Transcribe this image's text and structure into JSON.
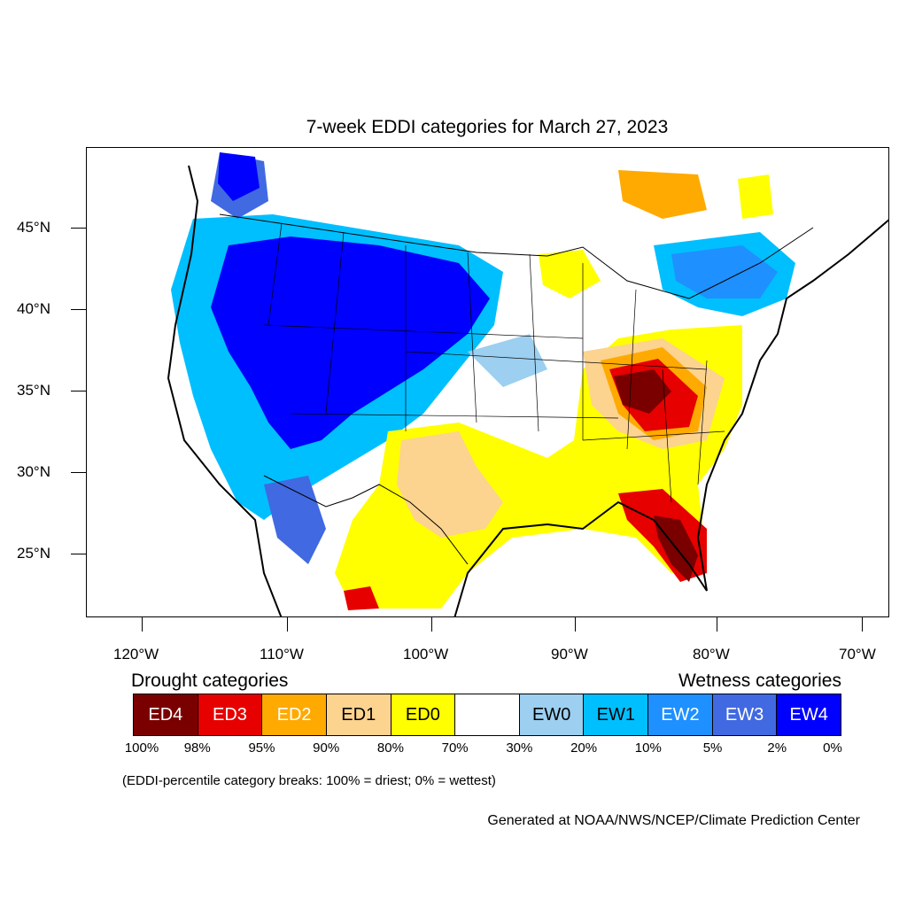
{
  "title": "7-week EDDI categories for March 27, 2023",
  "lat_labels": [
    "45°N",
    "40°N",
    "35°N",
    "30°N",
    "25°N"
  ],
  "lon_labels": [
    "120°W",
    "110°W",
    "100°W",
    "90°W",
    "80°W",
    "70°W"
  ],
  "legend": {
    "drought_heading": "Drought categories",
    "wetness_heading": "Wetness categories",
    "categories": [
      {
        "label": "ED4",
        "color": "#7a0000",
        "text_color": "#ffffff"
      },
      {
        "label": "ED3",
        "color": "#e60000",
        "text_color": "#ffffff"
      },
      {
        "label": "ED2",
        "color": "#ffaa00",
        "text_color": "#ffffff"
      },
      {
        "label": "ED1",
        "color": "#fcd38f",
        "text_color": "#000000"
      },
      {
        "label": "ED0",
        "color": "#ffff00",
        "text_color": "#000000"
      },
      {
        "label": "",
        "color": "#ffffff",
        "text_color": "#000000"
      },
      {
        "label": "EW0",
        "color": "#9ccff0",
        "text_color": "#000000"
      },
      {
        "label": "EW1",
        "color": "#00bfff",
        "text_color": "#000000"
      },
      {
        "label": "EW2",
        "color": "#1e90ff",
        "text_color": "#ffffff"
      },
      {
        "label": "EW3",
        "color": "#4169e1",
        "text_color": "#ffffff"
      },
      {
        "label": "EW4",
        "color": "#0000ff",
        "text_color": "#ffffff"
      }
    ],
    "breaks": [
      "100%",
      "98%",
      "95%",
      "90%",
      "80%",
      "70%",
      "30%",
      "20%",
      "10%",
      "5%",
      "2%",
      "0%"
    ]
  },
  "note": "(EDDI-percentile category breaks: 100% = driest; 0% = wettest)",
  "credit": "Generated at NOAA/NWS/NCEP/Climate Prediction Center"
}
